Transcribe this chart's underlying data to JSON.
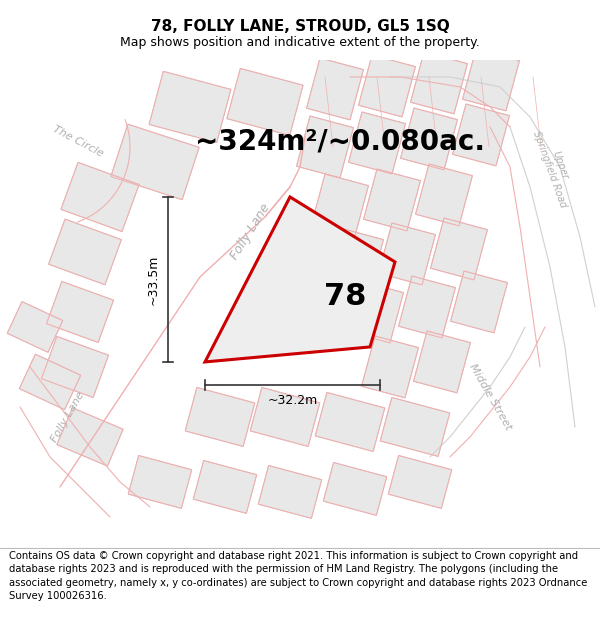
{
  "title_line1": "78, FOLLY LANE, STROUD, GL5 1SQ",
  "title_line2": "Map shows position and indicative extent of the property.",
  "area_text": "~324m²/~0.080ac.",
  "property_number": "78",
  "dim_horizontal": "~32.2m",
  "dim_vertical": "~33.5m",
  "footer_text": "Contains OS data © Crown copyright and database right 2021. This information is subject to Crown copyright and database rights 2023 and is reproduced with the permission of HM Land Registry. The polygons (including the associated geometry, namely x, y co-ordinates) are subject to Crown copyright and database rights 2023 Ordnance Survey 100026316.",
  "bg_color": "#ffffff",
  "map_bg": "#ffffff",
  "plot_fill": "#e8e8e8",
  "plot_edge_light": "#f0b0b0",
  "plot_edge_dark": "#c8c8c8",
  "prop_fill": "#eeeeee",
  "prop_edge": "#cc0000",
  "street_label_color": "#b0b0b0",
  "dim_color": "#333333",
  "title_fontsize": 11,
  "subtitle_fontsize": 9,
  "area_fontsize": 20,
  "footer_fontsize": 7.2,
  "prop_num_fontsize": 22,
  "street_fontsize": 9
}
